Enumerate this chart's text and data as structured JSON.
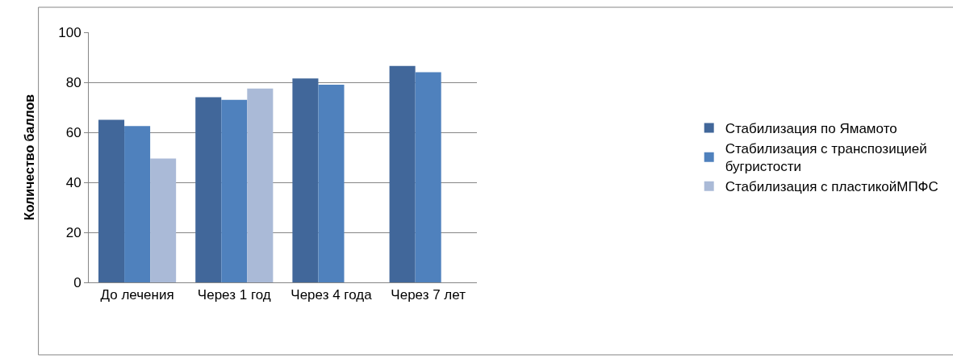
{
  "chart_data": {
    "type": "bar",
    "ylabel": "Количество баллов",
    "categories": [
      "До лечения",
      "Через 1 год",
      "Через 4 года",
      "Через 7 лет"
    ],
    "series": [
      {
        "name": "Стабилизация по Ямамото",
        "color": "#41679a",
        "values": [
          65,
          74,
          81.5,
          86.5
        ]
      },
      {
        "name": "Стабилизация с транспозицией бугристости",
        "color": "#4f81bd",
        "values": [
          62.5,
          73,
          79,
          84
        ]
      },
      {
        "name": "Стабилизация с пластикойМПФС",
        "color": "#aabad7",
        "values": [
          49.5,
          77.5,
          null,
          null
        ]
      }
    ],
    "ylim": [
      0,
      100
    ],
    "yticks": [
      0,
      20,
      40,
      60,
      80,
      100
    ],
    "grid": "y",
    "legend": "right"
  }
}
